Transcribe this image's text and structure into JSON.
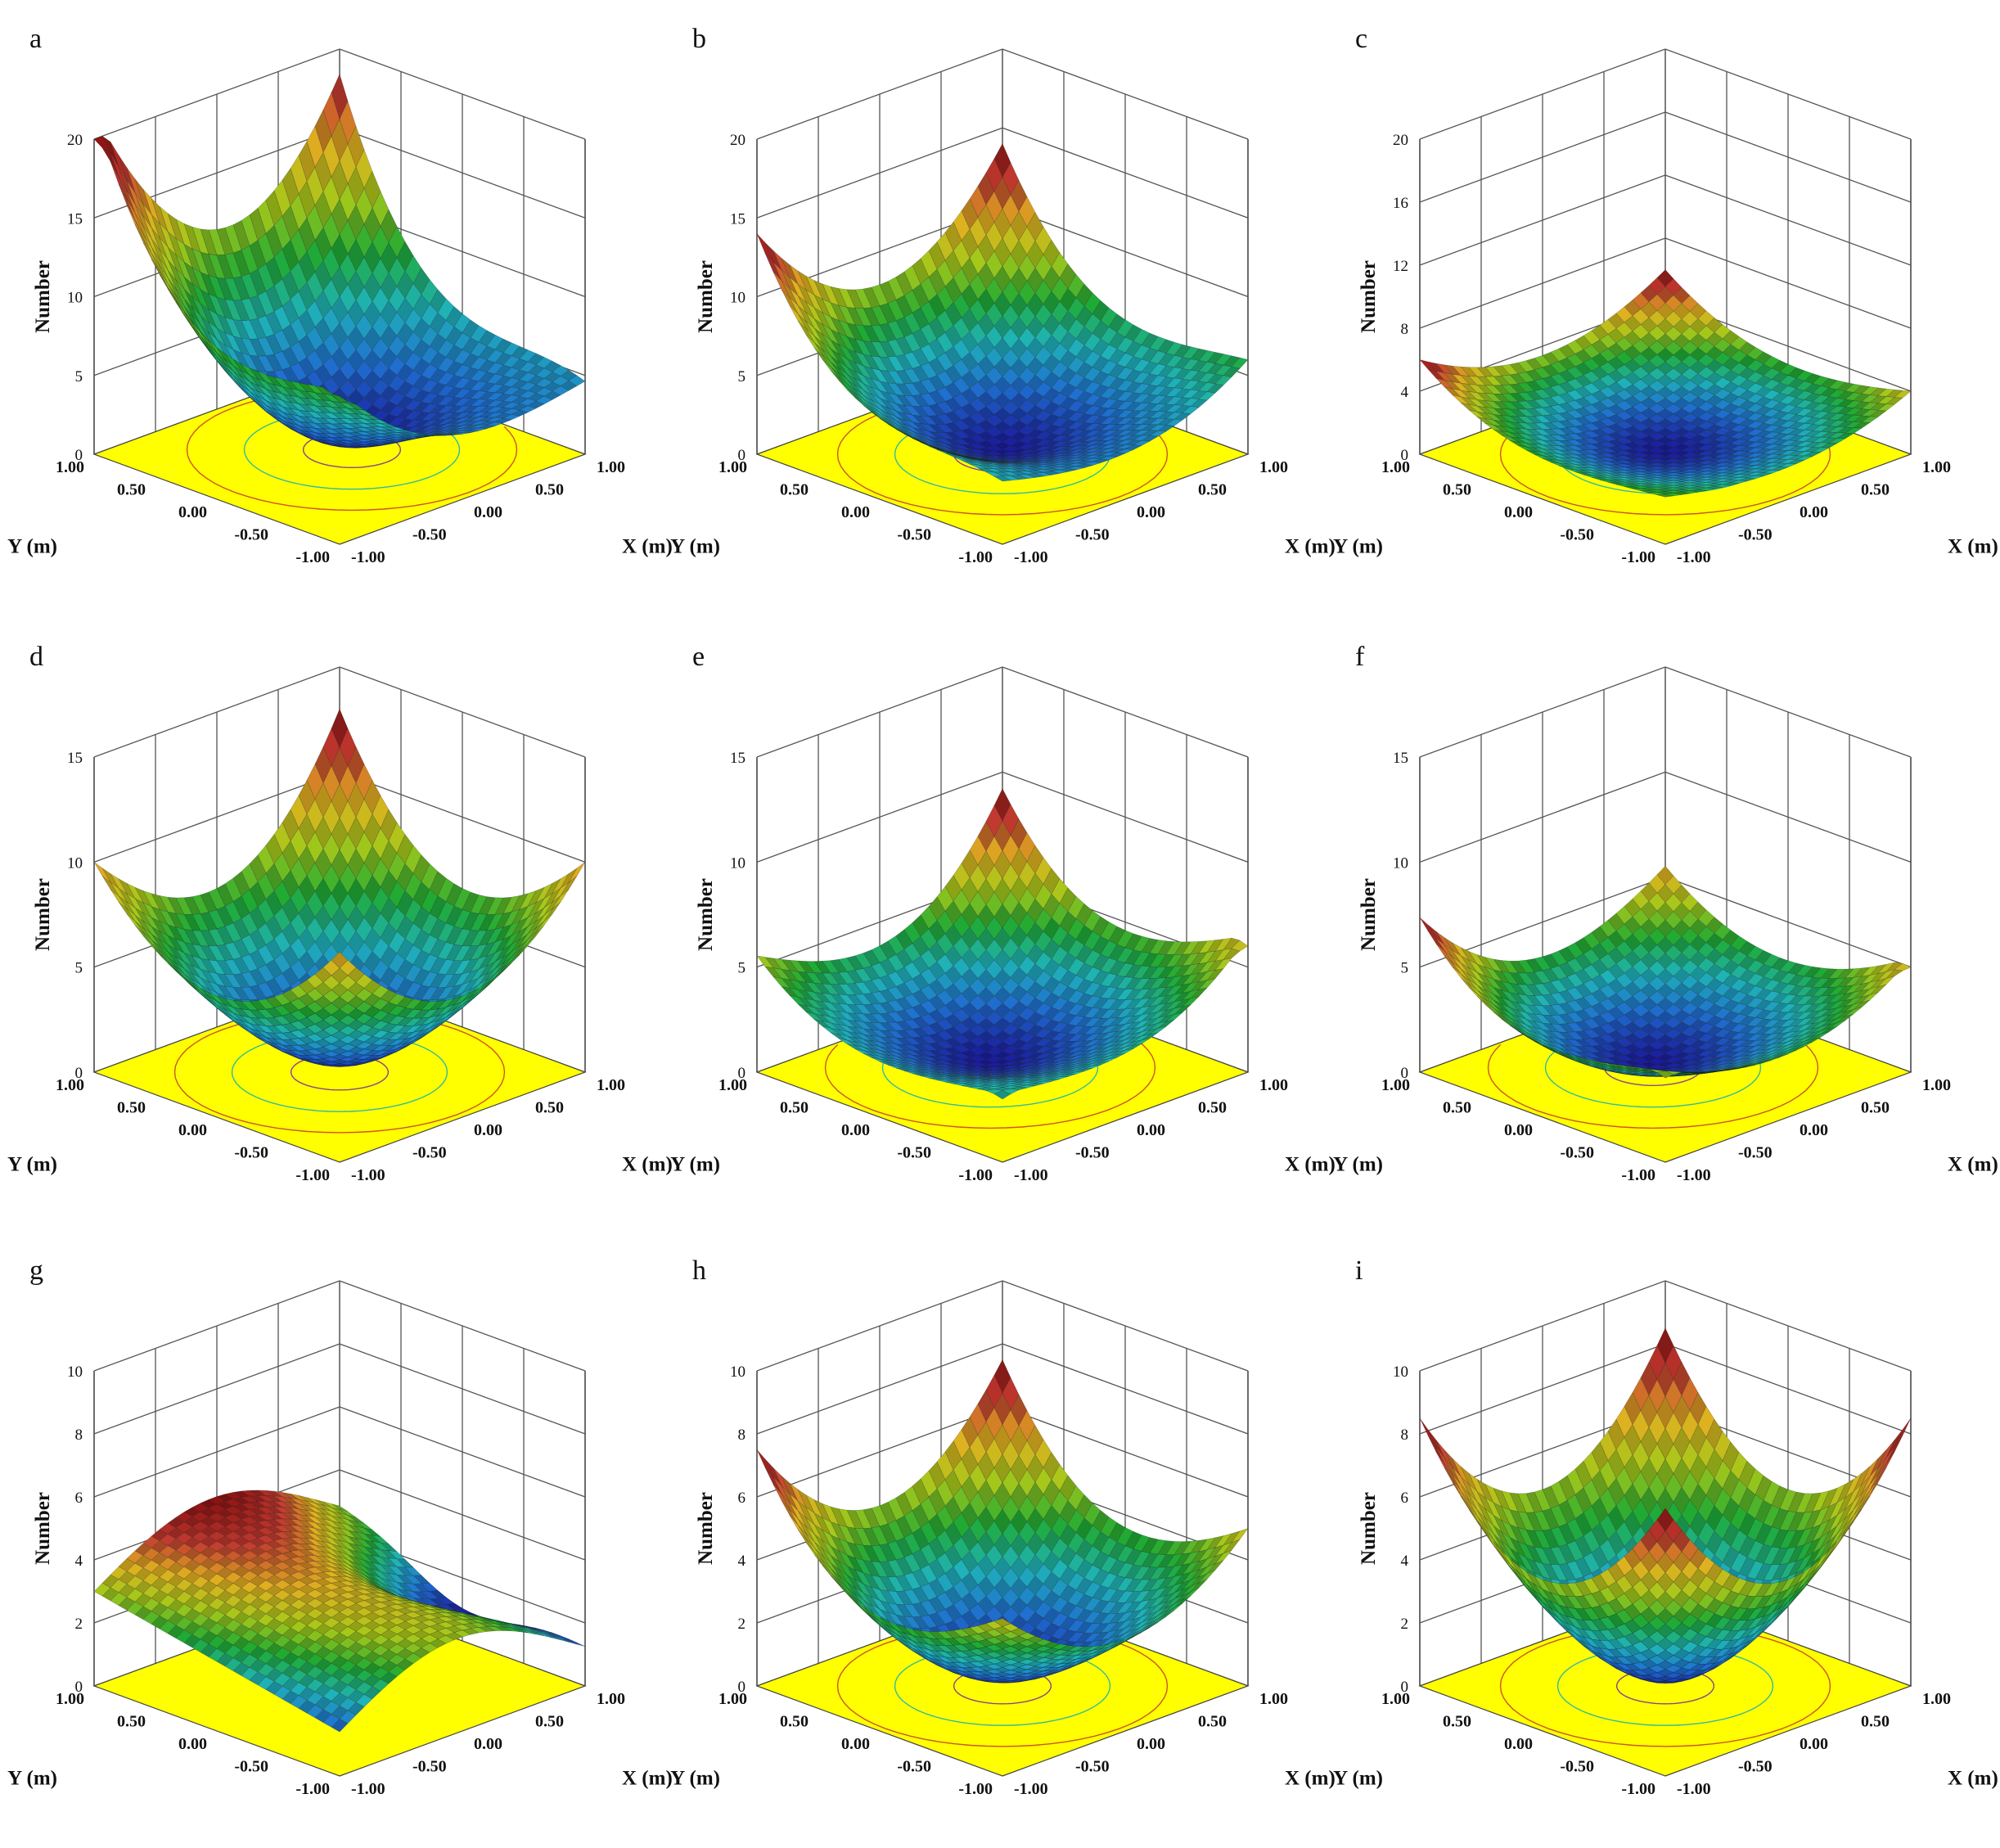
{
  "figure": {
    "zlabel": "Number",
    "xlabel": "X (m)",
    "ylabel": "Y (m)",
    "xy_ticks": [
      "-1.00",
      "-0.50",
      "0.00",
      "0.50",
      "1.00"
    ],
    "floor_color": "#ffff00",
    "colormap": [
      "#1a1a9e",
      "#1f6fd0",
      "#1fb3b8",
      "#1faa33",
      "#a6c81a",
      "#e0b020",
      "#c23a30",
      "#8a1010"
    ]
  },
  "chart_data": [
    {
      "panel": "a",
      "type": "surface3d",
      "x_range": [
        -1,
        1
      ],
      "y_range": [
        -1,
        1
      ],
      "zlim": [
        0,
        20
      ],
      "z_ticks": [
        "0",
        "5",
        "10",
        "15",
        "20"
      ],
      "corner_values": {
        "x-1_y1": 20,
        "x-1_y-1": 9,
        "x1_y1": 20,
        "x1_y-1": 5
      },
      "minimum": {
        "x": 0.1,
        "y": 0.0,
        "z": 0.5
      }
    },
    {
      "panel": "b",
      "type": "surface3d",
      "x_range": [
        -1,
        1
      ],
      "y_range": [
        -1,
        1
      ],
      "zlim": [
        0,
        20
      ],
      "z_ticks": [
        "0",
        "5",
        "10",
        "15",
        "20"
      ],
      "corner_values": {
        "x-1_y1": 14,
        "x-1_y-1": 4,
        "x1_y1": 14,
        "x1_y-1": 6
      },
      "minimum": {
        "x": 0.0,
        "y": 0.0,
        "z": 0.3
      }
    },
    {
      "panel": "c",
      "type": "surface3d",
      "x_range": [
        -1,
        1
      ],
      "y_range": [
        -1,
        1
      ],
      "zlim": [
        0,
        20
      ],
      "z_ticks": [
        "0",
        "4",
        "8",
        "12",
        "16",
        "20"
      ],
      "corner_values": {
        "x-1_y1": 6,
        "x-1_y-1": 3,
        "x1_y1": 6,
        "x1_y-1": 4
      },
      "minimum": {
        "x": 0.0,
        "y": 0.0,
        "z": 0.2
      }
    },
    {
      "panel": "d",
      "type": "surface3d",
      "x_range": [
        -1,
        1
      ],
      "y_range": [
        -1,
        1
      ],
      "zlim": [
        0,
        15
      ],
      "z_ticks": [
        "0",
        "5",
        "10",
        "15"
      ],
      "corner_values": {
        "x-1_y1": 10,
        "x-1_y-1": 10,
        "x1_y1": 13,
        "x1_y-1": 10
      },
      "minimum": {
        "x": 0.0,
        "y": 0.0,
        "z": 0.5
      }
    },
    {
      "panel": "e",
      "type": "surface3d",
      "x_range": [
        -1,
        1
      ],
      "y_range": [
        -1,
        1
      ],
      "zlim": [
        0,
        15
      ],
      "z_ticks": [
        "0",
        "5",
        "10",
        "15"
      ],
      "corner_values": {
        "x-1_y1": 6,
        "x-1_y-1": 3,
        "x1_y1": 10,
        "x1_y-1": 6
      },
      "minimum": {
        "x": 0.0,
        "y": 0.1,
        "z": 0.3
      }
    },
    {
      "panel": "f",
      "type": "surface3d",
      "x_range": [
        -1,
        1
      ],
      "y_range": [
        -1,
        1
      ],
      "zlim": [
        0,
        15
      ],
      "z_ticks": [
        "0",
        "5",
        "10",
        "15"
      ],
      "corner_values": {
        "x-1_y1": 8,
        "x-1_y-1": 4,
        "x1_y1": 6,
        "x1_y-1": 5
      },
      "minimum": {
        "x": 0.0,
        "y": 0.1,
        "z": 0.2
      }
    },
    {
      "panel": "g",
      "type": "surface3d",
      "x_range": [
        -1,
        1
      ],
      "y_range": [
        -1,
        1
      ],
      "zlim": [
        0,
        10
      ],
      "z_ticks": [
        "0",
        "2",
        "4",
        "6",
        "8",
        "10"
      ],
      "corner_values": {
        "x-1_y1": 4,
        "x-1_y-1": 0,
        "x1_y1": 4,
        "x1_y-1": 2
      },
      "minimum": {
        "x": 0.7,
        "y": 0.0,
        "z": 0.3
      }
    },
    {
      "panel": "h",
      "type": "surface3d",
      "x_range": [
        -1,
        1
      ],
      "y_range": [
        -1,
        1
      ],
      "zlim": [
        0,
        10
      ],
      "z_ticks": [
        "0",
        "2",
        "4",
        "6",
        "8",
        "10"
      ],
      "corner_values": {
        "x-1_y1": 7.5,
        "x-1_y-1": 5,
        "x1_y1": 7.5,
        "x1_y-1": 5
      },
      "minimum": {
        "x": 0.0,
        "y": 0.0,
        "z": 0.3
      }
    },
    {
      "panel": "i",
      "type": "surface3d",
      "x_range": [
        -1,
        1
      ],
      "y_range": [
        -1,
        1
      ],
      "zlim": [
        0,
        10
      ],
      "z_ticks": [
        "0",
        "2",
        "4",
        "6",
        "8",
        "10"
      ],
      "corner_values": {
        "x-1_y1": 8.5,
        "x-1_y-1": 8.5,
        "x1_y1": 8.5,
        "x1_y-1": 8.5
      },
      "minimum": {
        "x": 0.0,
        "y": 0.0,
        "z": 0.2
      }
    }
  ]
}
